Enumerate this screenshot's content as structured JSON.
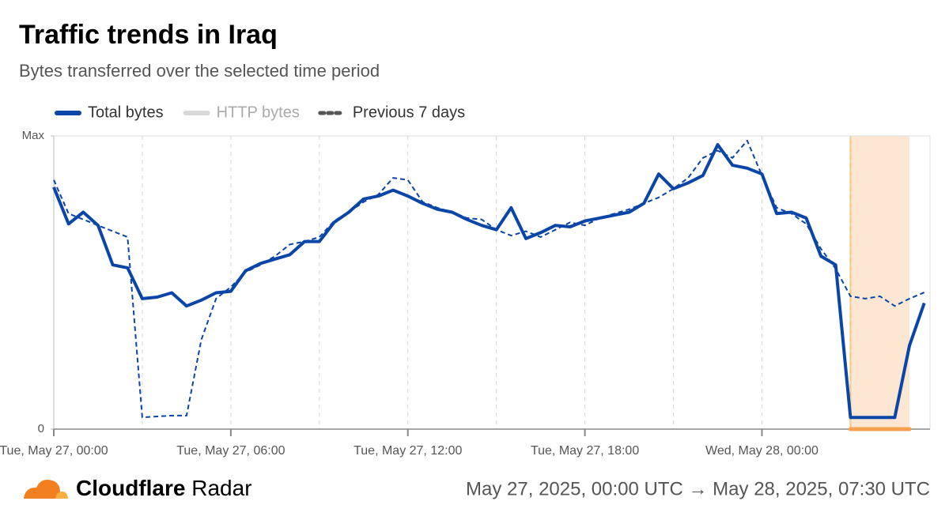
{
  "chart_data": {
    "type": "line",
    "title": "Traffic trends in Iraq",
    "subtitle": "Bytes transferred over the selected time period",
    "x": [
      0,
      0.5,
      1,
      1.5,
      2,
      2.5,
      3,
      3.5,
      4,
      4.5,
      5,
      5.5,
      6,
      6.5,
      7,
      7.5,
      8,
      8.5,
      9,
      9.5,
      10,
      10.5,
      11,
      11.5,
      12,
      12.5,
      13,
      13.5,
      14,
      14.5,
      15,
      15.5,
      16,
      16.5,
      17,
      17.5,
      18,
      18.5,
      19,
      19.5,
      20,
      20.5,
      21,
      21.5,
      22,
      22.5,
      23,
      23.5,
      24,
      24.5,
      25,
      25.5,
      26,
      26.5,
      27,
      27.5,
      28,
      28.5,
      29,
      29.5
    ],
    "series": [
      {
        "name": "Total bytes",
        "color": "#0a45a8",
        "style": "solid",
        "values": [
          82.5,
          70,
          74,
          69.5,
          56,
          55,
          44.5,
          45,
          46.5,
          42,
          44,
          46.5,
          47,
          54,
          56.5,
          58,
          59.5,
          64,
          64,
          70.5,
          74,
          78.5,
          79.5,
          81.5,
          79.5,
          77,
          75,
          74,
          71.5,
          69.5,
          68,
          75.5,
          65,
          67,
          69.5,
          69,
          71,
          72,
          73,
          74,
          77,
          87,
          82,
          84,
          86.5,
          97,
          90,
          89,
          87,
          73.5,
          74,
          72,
          59,
          56,
          4,
          4,
          4,
          4,
          28.5,
          43
        ]
      },
      {
        "name": "HTTP bytes",
        "color": "#d9d9d9",
        "style": "hidden"
      },
      {
        "name": "Previous 7 days",
        "color": "#0a45a8",
        "style": "dashed",
        "values": [
          85,
          73.5,
          71.5,
          69.5,
          67.5,
          65.5,
          4,
          4.3,
          4.6,
          4.6,
          30.5,
          44.5,
          48.5,
          53.5,
          56,
          59,
          63,
          64,
          65.5,
          71,
          74,
          77.5,
          80,
          85.7,
          85,
          77.5,
          75.5,
          74,
          72,
          71.5,
          68,
          66,
          67.5,
          65.5,
          68,
          70.5,
          69.5,
          72,
          73.5,
          75,
          77,
          79,
          82,
          85.7,
          92.5,
          95,
          92.5,
          98.4,
          86.5,
          75.5,
          73.5,
          70,
          61.5,
          54.7,
          45.3,
          44.5,
          45.3,
          42,
          44.5,
          46.6
        ]
      }
    ],
    "xlim": [
      0,
      29.75
    ],
    "xticks": [
      {
        "value": 0,
        "label": "Tue, May 27, 00:00"
      },
      {
        "value": 6,
        "label": "Tue, May 27, 06:00"
      },
      {
        "value": 12,
        "label": "Tue, May 27, 12:00"
      },
      {
        "value": 18,
        "label": "Tue, May 27, 18:00"
      },
      {
        "value": 24,
        "label": "Wed, May 28, 00:00"
      }
    ],
    "xgrid": [
      3,
      6,
      9,
      12,
      15,
      18,
      21,
      24,
      27
    ],
    "ylim": [
      0,
      100
    ],
    "yticks": [
      0,
      {
        "value": 100,
        "label": "Max"
      }
    ],
    "highlight": [
      27,
      29
    ],
    "highlight_color": "#f6a04d",
    "brand": {
      "bold": "Cloudflare",
      "regular": "Radar"
    },
    "time_range": "May 27, 2025, 00:00 UTC → May 28, 2025, 07:30 UTC"
  }
}
